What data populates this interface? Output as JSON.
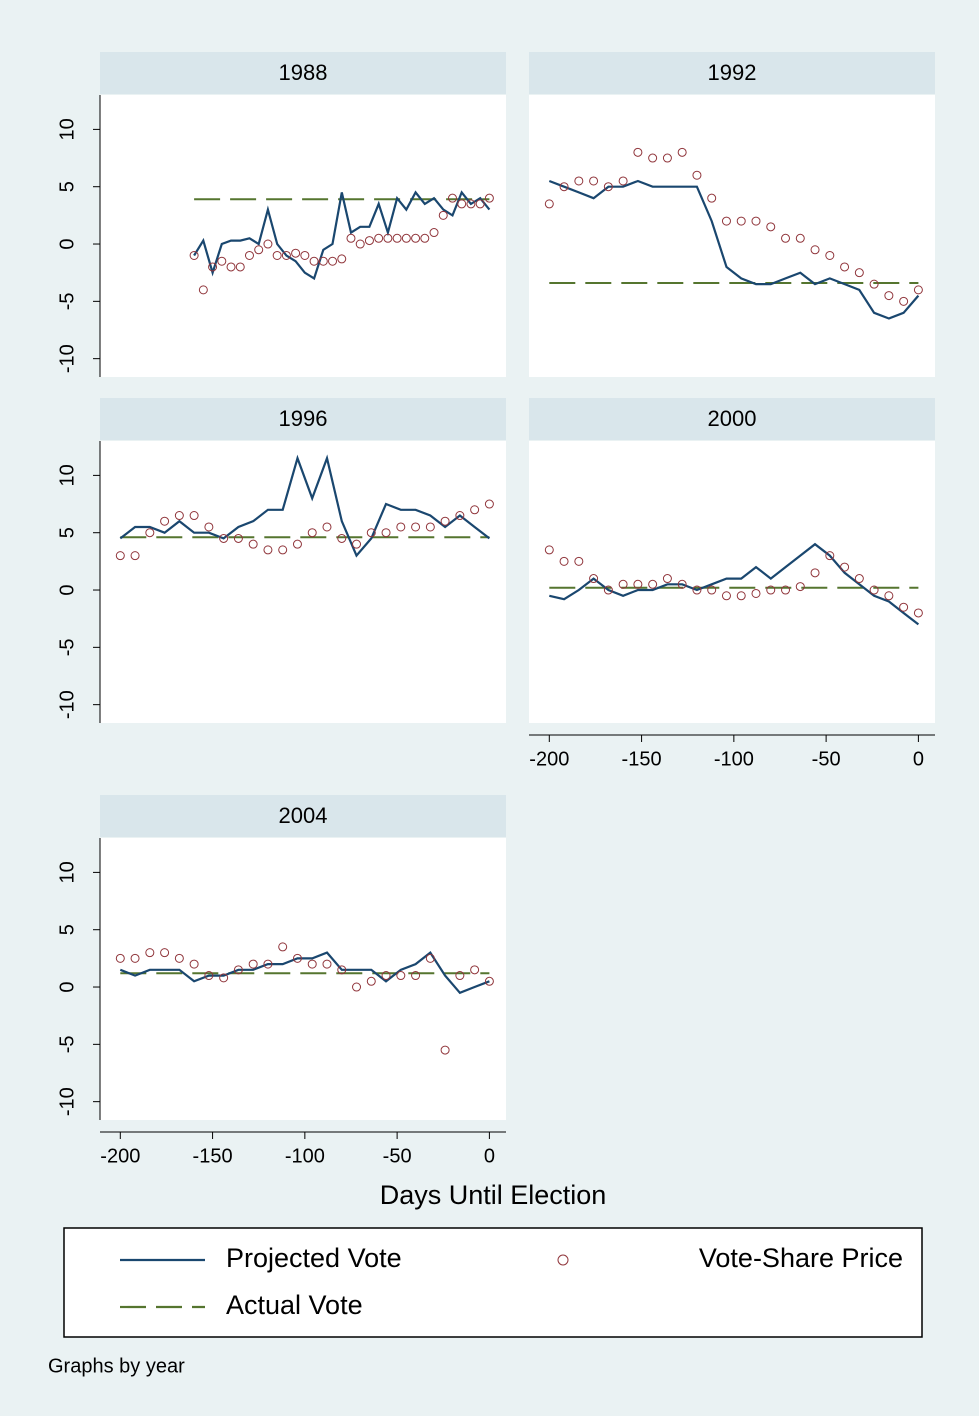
{
  "chart_data": [
    {
      "type": "line",
      "title": "1988",
      "xlim": [
        -211,
        9
      ],
      "ylim": [
        -11.6,
        13
      ],
      "yticks": [
        -10,
        -5,
        0,
        5,
        10
      ],
      "series": [
        {
          "name": "Projected Vote",
          "style": "line",
          "color": "#1a476f",
          "x": [
            -160,
            -155,
            -150,
            -145,
            -140,
            -135,
            -130,
            -125,
            -120,
            -115,
            -110,
            -105,
            -100,
            -95,
            -90,
            -85,
            -80,
            -75,
            -70,
            -65,
            -60,
            -55,
            -50,
            -45,
            -40,
            -35,
            -30,
            -25,
            -20,
            -15,
            -10,
            -5,
            0
          ],
          "values": [
            -1,
            0.3,
            -2.5,
            0,
            0.3,
            0.3,
            0.5,
            0,
            3,
            0,
            -1,
            -1.5,
            -2.5,
            -3,
            -0.5,
            0,
            4.5,
            1,
            1.5,
            1.5,
            3.5,
            1,
            4,
            3,
            4.5,
            3.5,
            4,
            3,
            2.5,
            4.5,
            3.5,
            4,
            3
          ]
        },
        {
          "name": "Vote-Share Price",
          "style": "markers",
          "color": "#90353b",
          "x": [
            -160,
            -155,
            -150,
            -145,
            -140,
            -135,
            -130,
            -125,
            -120,
            -115,
            -110,
            -105,
            -100,
            -95,
            -90,
            -85,
            -80,
            -75,
            -70,
            -65,
            -60,
            -55,
            -50,
            -45,
            -40,
            -35,
            -30,
            -25,
            -20,
            -15,
            -10,
            -5,
            0
          ],
          "values": [
            -1,
            -4,
            -2,
            -1.5,
            -2,
            -2,
            -1,
            -0.5,
            0,
            -1,
            -1,
            -0.8,
            -1,
            -1.5,
            -1.5,
            -1.5,
            -1.3,
            0.5,
            0,
            0.3,
            0.5,
            0.5,
            0.5,
            0.5,
            0.5,
            0.5,
            1,
            2.5,
            4,
            3.5,
            3.5,
            3.5,
            4
          ]
        },
        {
          "name": "Actual Vote",
          "style": "dashed",
          "color": "#55752f",
          "x": [
            -160,
            0
          ],
          "values": [
            3.9,
            3.9
          ]
        }
      ]
    },
    {
      "type": "line",
      "title": "1992",
      "xlim": [
        -211,
        9
      ],
      "ylim": [
        -11.6,
        13
      ],
      "series": [
        {
          "name": "Projected Vote",
          "style": "line",
          "color": "#1a476f",
          "x": [
            -200,
            -192,
            -184,
            -176,
            -168,
            -160,
            -152,
            -144,
            -136,
            -128,
            -120,
            -112,
            -104,
            -96,
            -88,
            -80,
            -72,
            -64,
            -56,
            -48,
            -40,
            -32,
            -24,
            -16,
            -8,
            0
          ],
          "values": [
            5.5,
            5,
            4.5,
            4,
            5,
            5,
            5.5,
            5,
            5,
            5,
            5,
            2,
            -2,
            -3,
            -3.5,
            -3.5,
            -3,
            -2.5,
            -3.5,
            -3,
            -3.5,
            -4,
            -6,
            -6.5,
            -6,
            -4.5
          ]
        },
        {
          "name": "Vote-Share Price",
          "style": "markers",
          "color": "#90353b",
          "x": [
            -200,
            -192,
            -184,
            -176,
            -168,
            -160,
            -152,
            -144,
            -136,
            -128,
            -120,
            -112,
            -104,
            -96,
            -88,
            -80,
            -72,
            -64,
            -56,
            -48,
            -40,
            -32,
            -24,
            -16,
            -8,
            0
          ],
          "values": [
            3.5,
            5,
            5.5,
            5.5,
            5,
            5.5,
            8,
            7.5,
            7.5,
            8,
            6,
            4,
            2,
            2,
            2,
            1.5,
            0.5,
            0.5,
            -0.5,
            -1,
            -2,
            -2.5,
            -3.5,
            -4.5,
            -5,
            -4
          ]
        },
        {
          "name": "Actual Vote",
          "style": "dashed",
          "color": "#55752f",
          "x": [
            -200,
            0
          ],
          "values": [
            -3.4,
            -3.4
          ]
        }
      ]
    },
    {
      "type": "line",
      "title": "1996",
      "xlim": [
        -211,
        9
      ],
      "ylim": [
        -11.6,
        13
      ],
      "yticks": [
        -10,
        -5,
        0,
        5,
        10
      ],
      "series": [
        {
          "name": "Projected Vote",
          "style": "line",
          "color": "#1a476f",
          "x": [
            -200,
            -192,
            -184,
            -176,
            -168,
            -160,
            -152,
            -144,
            -136,
            -128,
            -120,
            -112,
            -104,
            -96,
            -88,
            -80,
            -72,
            -64,
            -56,
            -48,
            -40,
            -32,
            -24,
            -16,
            -8,
            0
          ],
          "values": [
            4.5,
            5.5,
            5.5,
            5,
            6,
            5,
            5,
            4.5,
            5.5,
            6,
            7,
            7,
            11.5,
            8,
            11.5,
            6,
            3,
            4.5,
            7.5,
            7,
            7,
            6.5,
            5.5,
            6.5,
            5.5,
            4.5
          ]
        },
        {
          "name": "Vote-Share Price",
          "style": "markers",
          "color": "#90353b",
          "x": [
            -200,
            -192,
            -184,
            -176,
            -168,
            -160,
            -152,
            -144,
            -136,
            -128,
            -120,
            -112,
            -104,
            -96,
            -88,
            -80,
            -72,
            -64,
            -56,
            -48,
            -40,
            -32,
            -24,
            -16,
            -8,
            0
          ],
          "values": [
            3,
            3,
            5,
            6,
            6.5,
            6.5,
            5.5,
            4.5,
            4.5,
            4,
            3.5,
            3.5,
            4,
            5,
            5.5,
            4.5,
            4,
            5,
            5,
            5.5,
            5.5,
            5.5,
            6,
            6.5,
            7,
            7.5
          ]
        },
        {
          "name": "Actual Vote",
          "style": "dashed",
          "color": "#55752f",
          "x": [
            -200,
            0
          ],
          "values": [
            4.6,
            4.6
          ]
        }
      ]
    },
    {
      "type": "line",
      "title": "2000",
      "xlim": [
        -211,
        9
      ],
      "ylim": [
        -11.6,
        13
      ],
      "xticks": [
        -200,
        -150,
        -100,
        -50,
        0
      ],
      "series": [
        {
          "name": "Projected Vote",
          "style": "line",
          "color": "#1a476f",
          "x": [
            -200,
            -192,
            -184,
            -176,
            -168,
            -160,
            -152,
            -144,
            -136,
            -128,
            -120,
            -112,
            -104,
            -96,
            -88,
            -80,
            -72,
            -64,
            -56,
            -48,
            -40,
            -32,
            -24,
            -16,
            -8,
            0
          ],
          "values": [
            -0.5,
            -0.8,
            0,
            1,
            0,
            -0.5,
            0,
            0,
            0.5,
            0.5,
            0,
            0.5,
            1,
            1,
            2,
            1,
            2,
            3,
            4,
            3,
            1.5,
            0.5,
            -0.5,
            -1,
            -2,
            -3
          ]
        },
        {
          "name": "Vote-Share Price",
          "style": "markers",
          "color": "#90353b",
          "x": [
            -200,
            -192,
            -184,
            -176,
            -168,
            -160,
            -152,
            -144,
            -136,
            -128,
            -120,
            -112,
            -104,
            -96,
            -88,
            -80,
            -72,
            -64,
            -56,
            -48,
            -40,
            -32,
            -24,
            -16,
            -8,
            0
          ],
          "values": [
            3.5,
            2.5,
            2.5,
            1,
            0,
            0.5,
            0.5,
            0.5,
            1,
            0.5,
            0,
            0,
            -0.5,
            -0.5,
            -0.3,
            0,
            0,
            0.3,
            1.5,
            3,
            2,
            1,
            0,
            -0.5,
            -1.5,
            -2
          ]
        },
        {
          "name": "Actual Vote",
          "style": "dashed",
          "color": "#55752f",
          "x": [
            -200,
            0
          ],
          "values": [
            0.2,
            0.2
          ]
        }
      ]
    },
    {
      "type": "line",
      "title": "2004",
      "xlim": [
        -211,
        9
      ],
      "ylim": [
        -11.6,
        13
      ],
      "yticks": [
        -10,
        -5,
        0,
        5,
        10
      ],
      "xticks": [
        -200,
        -150,
        -100,
        -50,
        0
      ],
      "series": [
        {
          "name": "Projected Vote",
          "style": "line",
          "color": "#1a476f",
          "x": [
            -200,
            -192,
            -184,
            -176,
            -168,
            -160,
            -152,
            -144,
            -136,
            -128,
            -120,
            -112,
            -104,
            -96,
            -88,
            -80,
            -72,
            -64,
            -56,
            -48,
            -40,
            -32,
            -24,
            -16,
            -8,
            0
          ],
          "values": [
            1.5,
            1,
            1.5,
            1.5,
            1.5,
            0.5,
            1,
            1,
            1.5,
            1.5,
            2,
            2,
            2.5,
            2.5,
            3,
            1.5,
            1.5,
            1.5,
            0.5,
            1.5,
            2,
            3,
            1,
            -0.5,
            0,
            0.5
          ]
        },
        {
          "name": "Vote-Share Price",
          "style": "markers",
          "color": "#90353b",
          "x": [
            -200,
            -192,
            -184,
            -176,
            -168,
            -160,
            -152,
            -144,
            -136,
            -128,
            -120,
            -112,
            -104,
            -96,
            -88,
            -80,
            -72,
            -64,
            -56,
            -48,
            -40,
            -32,
            -24,
            -16,
            -8,
            0
          ],
          "values": [
            2.5,
            2.5,
            3,
            3,
            2.5,
            2,
            1,
            0.8,
            1.5,
            2,
            2,
            3.5,
            2.5,
            2,
            2,
            1.5,
            0,
            0.5,
            1,
            1,
            1,
            2.5,
            -5.5,
            1,
            1.5,
            0.5
          ]
        },
        {
          "name": "Actual Vote",
          "style": "dashed",
          "color": "#55752f",
          "x": [
            -200,
            0
          ],
          "values": [
            1.2,
            1.2
          ]
        }
      ]
    }
  ],
  "xlabel": "Days Until Election",
  "note": "Graphs by year"
}
